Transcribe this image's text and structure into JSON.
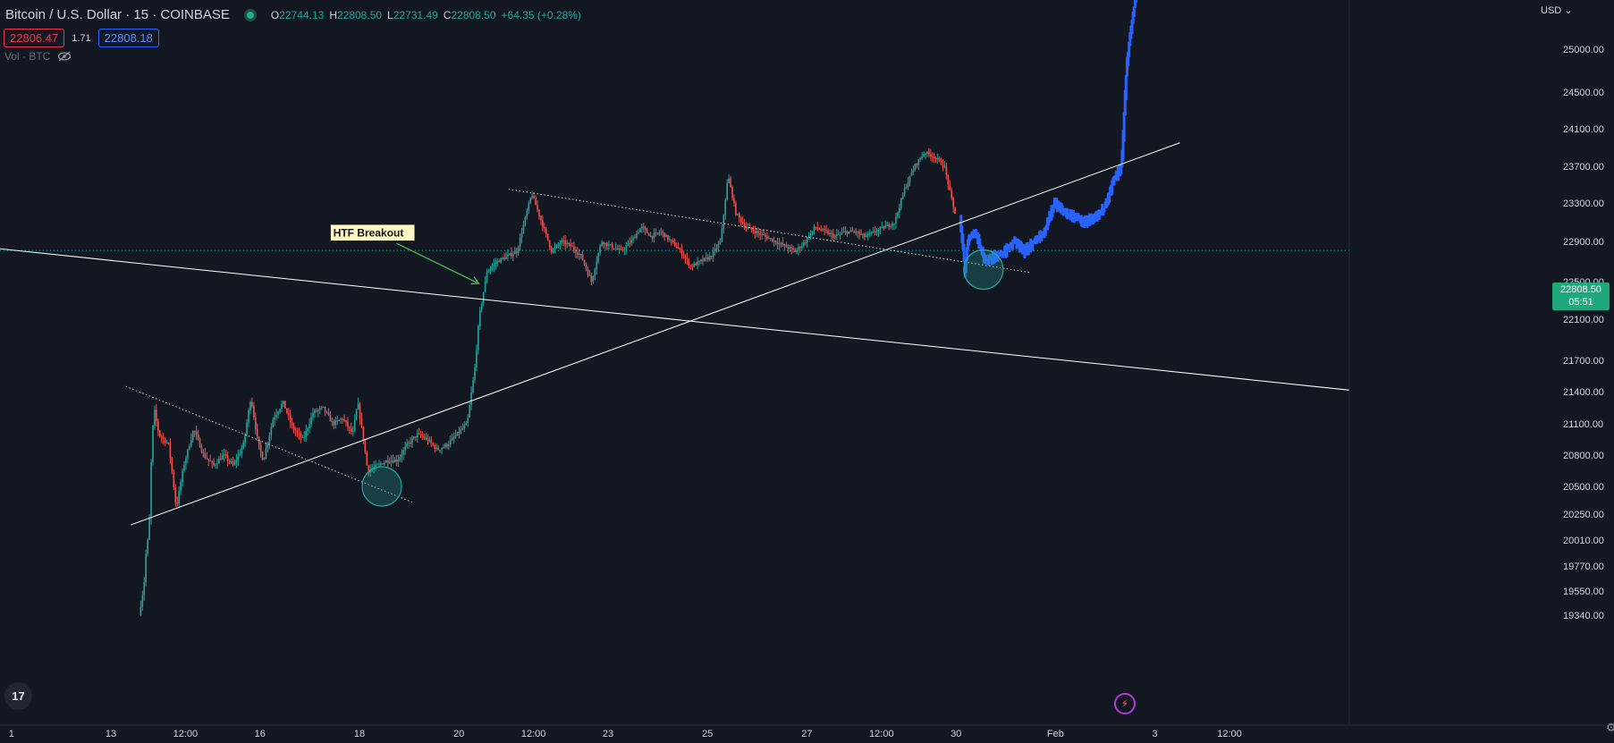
{
  "header": {
    "title": "Bitcoin / U.S. Dollar · 15 · COINBASE",
    "ohlc": {
      "o_label": "O",
      "o": "22744.13",
      "h_label": "H",
      "h": "22808.50",
      "l_label": "L",
      "l": "22731.49",
      "c_label": "C",
      "c": "22808.50",
      "change": "+64.35 (+0.28%)"
    },
    "bid": "22806.47",
    "spread": "1.71",
    "ask": "22808.18",
    "volume_label": "Vol · BTC"
  },
  "axis": {
    "currency": "USD",
    "price_tag": "22808.50",
    "countdown": "05:51"
  },
  "colors": {
    "background": "#131722",
    "up": "#26a69a",
    "down": "#ef5350",
    "projection": "#2962ff",
    "trendline": "#ffffff",
    "circle": "#26a69a",
    "annotation_arrow": "#4caf50",
    "price_tag": "#1fa87c"
  },
  "chart_data": {
    "type": "candlestick",
    "ylim": [
      19300,
      26200
    ],
    "y_ticks": [
      "25000.00",
      "24500.00",
      "24100.00",
      "23700.00",
      "23300.00",
      "22900.00",
      "22500.00",
      "22100.00",
      "21700.00",
      "21400.00",
      "21100.00",
      "20800.00",
      "20500.00",
      "20250.00",
      "20010.00",
      "19770.00",
      "19550.00",
      "19340.00"
    ],
    "x_ticks": [
      {
        "label": "1",
        "day": 11.0
      },
      {
        "label": "13",
        "day": 13.0
      },
      {
        "label": "12:00",
        "day": 14.5
      },
      {
        "label": "16",
        "day": 16.0
      },
      {
        "label": "18",
        "day": 18.0
      },
      {
        "label": "20",
        "day": 20.0
      },
      {
        "label": "12:00",
        "day": 21.5
      },
      {
        "label": "23",
        "day": 23.0
      },
      {
        "label": "25",
        "day": 25.0
      },
      {
        "label": "27",
        "day": 27.0
      },
      {
        "label": "12:00",
        "day": 28.5
      },
      {
        "label": "30",
        "day": 30.0
      },
      {
        "label": "Feb",
        "day": 32.0
      },
      {
        "label": "3",
        "day": 34.0
      },
      {
        "label": "12:00",
        "day": 35.5
      }
    ],
    "last_price": 22808.5,
    "price_path": [
      [
        13.6,
        19340
      ],
      [
        13.7,
        19600
      ],
      [
        13.75,
        19950
      ],
      [
        13.8,
        20050
      ],
      [
        13.85,
        20800
      ],
      [
        13.9,
        21250
      ],
      [
        14.0,
        21000
      ],
      [
        14.2,
        20900
      ],
      [
        14.35,
        20300
      ],
      [
        14.5,
        20700
      ],
      [
        14.7,
        21050
      ],
      [
        14.9,
        20800
      ],
      [
        15.1,
        20700
      ],
      [
        15.3,
        20800
      ],
      [
        15.5,
        20700
      ],
      [
        15.7,
        20900
      ],
      [
        15.85,
        21350
      ],
      [
        16.0,
        20900
      ],
      [
        16.1,
        20750
      ],
      [
        16.3,
        21150
      ],
      [
        16.5,
        21300
      ],
      [
        16.7,
        21050
      ],
      [
        16.9,
        20950
      ],
      [
        17.1,
        21200
      ],
      [
        17.3,
        21250
      ],
      [
        17.5,
        21100
      ],
      [
        17.7,
        21150
      ],
      [
        17.9,
        21000
      ],
      [
        18.0,
        21300
      ],
      [
        18.1,
        21000
      ],
      [
        18.2,
        20650
      ],
      [
        18.4,
        20700
      ],
      [
        18.6,
        20750
      ],
      [
        18.8,
        20750
      ],
      [
        19.0,
        20900
      ],
      [
        19.2,
        21000
      ],
      [
        19.4,
        20950
      ],
      [
        19.6,
        20850
      ],
      [
        19.8,
        20900
      ],
      [
        20.0,
        21000
      ],
      [
        20.2,
        21100
      ],
      [
        20.35,
        21600
      ],
      [
        20.45,
        22150
      ],
      [
        20.6,
        22600
      ],
      [
        20.8,
        22700
      ],
      [
        21.0,
        22750
      ],
      [
        21.2,
        22800
      ],
      [
        21.4,
        23200
      ],
      [
        21.5,
        23400
      ],
      [
        21.7,
        23100
      ],
      [
        21.9,
        22800
      ],
      [
        22.1,
        22900
      ],
      [
        22.3,
        22850
      ],
      [
        22.5,
        22750
      ],
      [
        22.7,
        22500
      ],
      [
        22.9,
        22900
      ],
      [
        23.1,
        22850
      ],
      [
        23.3,
        22800
      ],
      [
        23.5,
        22900
      ],
      [
        23.7,
        23050
      ],
      [
        23.9,
        22950
      ],
      [
        24.1,
        23000
      ],
      [
        24.3,
        22900
      ],
      [
        24.5,
        22800
      ],
      [
        24.7,
        22650
      ],
      [
        24.9,
        22700
      ],
      [
        25.1,
        22750
      ],
      [
        25.3,
        22900
      ],
      [
        25.45,
        23600
      ],
      [
        25.6,
        23200
      ],
      [
        25.8,
        23050
      ],
      [
        26.0,
        23000
      ],
      [
        26.2,
        22950
      ],
      [
        26.4,
        22900
      ],
      [
        26.6,
        22850
      ],
      [
        26.8,
        22800
      ],
      [
        27.0,
        22900
      ],
      [
        27.2,
        23050
      ],
      [
        27.4,
        23000
      ],
      [
        27.6,
        22950
      ],
      [
        27.8,
        23000
      ],
      [
        28.0,
        23000
      ],
      [
        28.2,
        22950
      ],
      [
        28.4,
        23000
      ],
      [
        28.6,
        23050
      ],
      [
        28.8,
        23100
      ],
      [
        29.0,
        23450
      ],
      [
        29.2,
        23700
      ],
      [
        29.4,
        23850
      ],
      [
        29.6,
        23800
      ],
      [
        29.8,
        23700
      ],
      [
        29.9,
        23450
      ],
      [
        30.0,
        23200
      ]
    ],
    "projection_path": [
      [
        30.1,
        23150
      ],
      [
        30.2,
        22600
      ],
      [
        30.25,
        22900
      ],
      [
        30.4,
        23000
      ],
      [
        30.6,
        22700
      ],
      [
        30.8,
        22750
      ],
      [
        31.0,
        22800
      ],
      [
        31.2,
        22900
      ],
      [
        31.4,
        22800
      ],
      [
        31.6,
        22900
      ],
      [
        31.8,
        23000
      ],
      [
        32.0,
        23300
      ],
      [
        32.2,
        23200
      ],
      [
        32.4,
        23150
      ],
      [
        32.6,
        23100
      ],
      [
        32.8,
        23150
      ],
      [
        33.0,
        23250
      ],
      [
        33.2,
        23550
      ],
      [
        33.35,
        23700
      ],
      [
        33.45,
        24800
      ],
      [
        33.55,
        25300
      ],
      [
        33.75,
        26100
      ],
      [
        33.9,
        26000
      ],
      [
        34.1,
        26050
      ],
      [
        34.35,
        26200
      ]
    ],
    "trendlines": [
      {
        "style": "solid",
        "from": [
          10.7,
          22830
        ],
        "to": [
          38.2,
          21400
        ]
      },
      {
        "style": "solid",
        "from": [
          13.4,
          20150
        ],
        "to": [
          34.5,
          23950
        ]
      },
      {
        "style": "dotted",
        "from": [
          13.3,
          21450
        ],
        "to": [
          19.1,
          20350
        ]
      },
      {
        "style": "dotted",
        "from": [
          21.0,
          23450
        ],
        "to": [
          31.5,
          22590
        ]
      }
    ],
    "circles": [
      {
        "day": 18.45,
        "price": 20500
      },
      {
        "day": 30.55,
        "price": 22620
      }
    ],
    "annotations": [
      {
        "text": "HTF Breakout",
        "arrow_from": [
          18.75,
          22880
        ],
        "arrow_to": [
          20.4,
          22480
        ]
      }
    ]
  }
}
